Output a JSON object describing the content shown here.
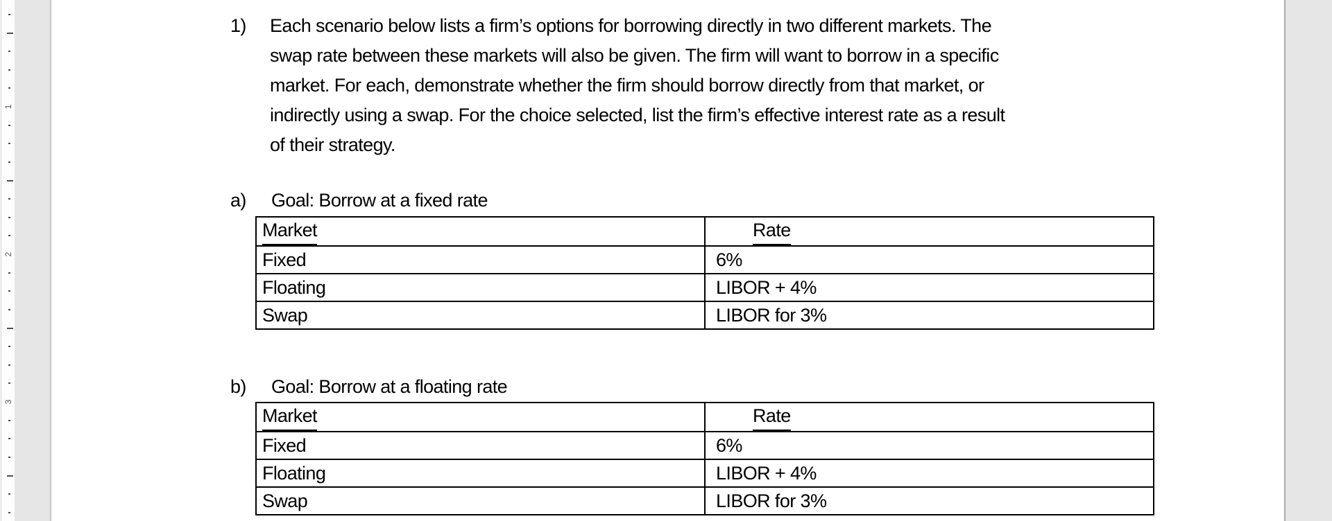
{
  "app": {
    "background_color": "#e6e6e6",
    "page_color": "#ffffff",
    "table_border_color": "#000000",
    "text_color": "#000000"
  },
  "ruler": {
    "inch_labels": [
      "1",
      "2",
      "3"
    ]
  },
  "document": {
    "question": {
      "marker": "1)",
      "lines": [
        "Each scenario below lists a firm’s options for borrowing directly in two different markets. The",
        "swap rate between these markets will also be given. The firm will want to borrow in a specific",
        "market. For each, demonstrate whether the firm should borrow directly from that market, or",
        "indirectly using a swap. For the choice selected, list the firm’s effective interest rate as a result",
        "of their strategy."
      ]
    },
    "sections": [
      {
        "marker": "a)",
        "heading": "Goal: Borrow at a fixed rate",
        "table": {
          "headers": [
            "Market",
            "Rate"
          ],
          "rows": [
            [
              "Fixed",
              "6%"
            ],
            [
              "Floating",
              "LIBOR + 4%"
            ],
            [
              "Swap",
              "LIBOR for 3%"
            ]
          ]
        }
      },
      {
        "marker": "b)",
        "heading": "Goal: Borrow at a floating rate",
        "table": {
          "headers": [
            "Market",
            "Rate"
          ],
          "rows": [
            [
              "Fixed",
              "6%"
            ],
            [
              "Floating",
              "LIBOR + 4%"
            ],
            [
              "Swap",
              "LIBOR for 3%"
            ]
          ]
        }
      }
    ]
  }
}
